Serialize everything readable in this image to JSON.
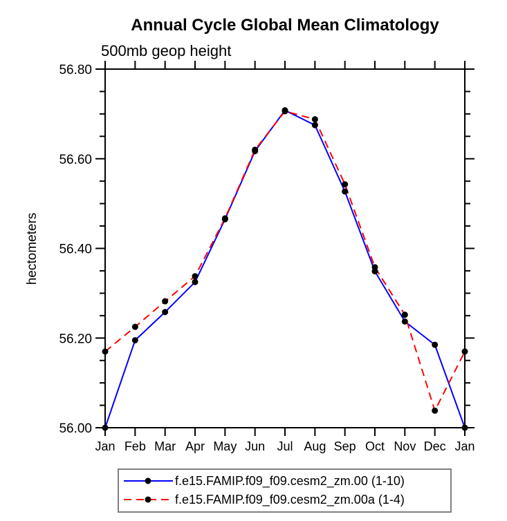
{
  "page": {
    "background": "#ffffff",
    "axis_color": "#000000",
    "legend_border_color": "#7f7f7f"
  },
  "chart_data": {
    "type": "line",
    "title": "Annual Cycle Global Mean Climatology",
    "subtitle": "500mb geop height",
    "xlabel": "",
    "ylabel": "hectometers",
    "categories": [
      "Jan",
      "Feb",
      "Mar",
      "Apr",
      "May",
      "Jun",
      "Jul",
      "Aug",
      "Sep",
      "Oct",
      "Nov",
      "Dec",
      "Jan"
    ],
    "ylim": [
      56.0,
      56.8
    ],
    "y_major_step": 0.2,
    "y_minor_step": 0.05,
    "y_tick_decimals": 2,
    "y_tick_labels": [
      "56.00",
      "56.20",
      "56.40",
      "56.60",
      "56.80"
    ],
    "grid": false,
    "legend_position": "bottom",
    "marker": "filled-circle",
    "marker_color": "#000000",
    "series": [
      {
        "name": "f.e15.FAMIP.f09_f09.cesm2_zm.00 (1-10)",
        "color": "#0000ff",
        "line_style": "solid",
        "values": [
          56.0,
          56.195,
          56.258,
          56.325,
          56.465,
          56.617,
          56.708,
          56.675,
          56.527,
          56.349,
          56.237,
          56.185,
          56.0
        ]
      },
      {
        "name": "f.e15.FAMIP.f09_f09.cesm2_zm.00a (1-4)",
        "color": "#ff0000",
        "line_style": "dashed",
        "values": [
          56.17,
          56.225,
          56.282,
          56.338,
          56.467,
          56.62,
          56.706,
          56.688,
          56.543,
          56.358,
          56.252,
          56.038,
          56.17
        ]
      }
    ]
  }
}
